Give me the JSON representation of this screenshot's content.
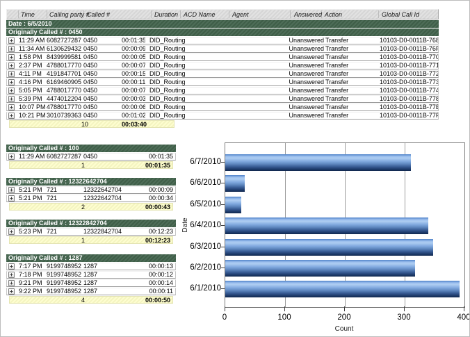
{
  "report": {
    "columns": [
      "Time",
      "Calling party #",
      "Called #",
      "Duration",
      "ACD Name",
      "Agent",
      "Answered",
      "Action",
      "Global Call Id"
    ],
    "date_header": "Date : 6/5/2010",
    "groups": [
      {
        "header": "Originally Called # : 0450",
        "rows": [
          {
            "time": "11:29 AM",
            "calling": "6082727287",
            "called": "0450",
            "duration": "00:01:35",
            "acd": "DID_Routing",
            "agent": "",
            "answered": "Unanswered",
            "action": "Transfer",
            "global_id": "10103-D0-0011B-768"
          },
          {
            "time": "11:34 AM",
            "calling": "6130629432",
            "called": "0450",
            "duration": "00:00:09",
            "acd": "DID_Routing",
            "agent": "",
            "answered": "Unanswered",
            "action": "Transfer",
            "global_id": "10103-D0-0011B-76F"
          },
          {
            "time": "1:58 PM",
            "calling": "8439999581",
            "called": "0450",
            "duration": "00:00:05",
            "acd": "DID_Routing",
            "agent": "",
            "answered": "Unanswered",
            "action": "Transfer",
            "global_id": "10103-D0-0011B-770"
          },
          {
            "time": "2:37 PM",
            "calling": "4788017770",
            "called": "0450",
            "duration": "00:00:07",
            "acd": "DID_Routing",
            "agent": "",
            "answered": "Unanswered",
            "action": "Transfer",
            "global_id": "10103-D0-0011B-771"
          },
          {
            "time": "4:11 PM",
            "calling": "4191847701",
            "called": "0450",
            "duration": "00:00:15",
            "acd": "DID_Routing",
            "agent": "",
            "answered": "Unanswered",
            "action": "Transfer",
            "global_id": "10103-D0-0011B-772"
          },
          {
            "time": "4:16 PM",
            "calling": "6169460905",
            "called": "0450",
            "duration": "00:00:11",
            "acd": "DID_Routing",
            "agent": "",
            "answered": "Unanswered",
            "action": "Transfer",
            "global_id": "10103-D0-0011B-773"
          },
          {
            "time": "5:05 PM",
            "calling": "4788017770",
            "called": "0450",
            "duration": "00:00:07",
            "acd": "DID_Routing",
            "agent": "",
            "answered": "Unanswered",
            "action": "Transfer",
            "global_id": "10103-D0-0011B-774"
          },
          {
            "time": "5:39 PM",
            "calling": "4474012204",
            "called": "0450",
            "duration": "00:00:03",
            "acd": "DID_Routing",
            "agent": "",
            "answered": "Unanswered",
            "action": "Transfer",
            "global_id": "10103-D0-0011B-778"
          },
          {
            "time": "10:07 PM",
            "calling": "4788017770",
            "called": "0450",
            "duration": "00:00:06",
            "acd": "DID_Routing",
            "agent": "",
            "answered": "Unanswered",
            "action": "Transfer",
            "global_id": "10103-D0-0011B-77E"
          },
          {
            "time": "10:21 PM",
            "calling": "3010739363",
            "called": "0450",
            "duration": "00:01:02",
            "acd": "DID_Routing",
            "agent": "",
            "answered": "Unanswered",
            "action": "Transfer",
            "global_id": "10103-D0-0011B-77F"
          }
        ],
        "summary": {
          "count": "10",
          "total": "00:03:40"
        }
      },
      {
        "header": "Originally Called # : 100",
        "rows": [
          {
            "time": "11:29 AM",
            "calling": "6082727287",
            "called": "0450",
            "duration": "00:01:35"
          }
        ],
        "summary": {
          "count": "1",
          "total": "00:01:35"
        }
      },
      {
        "header": "Originally Called # : 12322642704",
        "rows": [
          {
            "time": "5:21 PM",
            "calling": "721",
            "called": "12322642704",
            "duration": "00:00:09"
          },
          {
            "time": "5:21 PM",
            "calling": "721",
            "called": "12322642704",
            "duration": "00:00:34"
          }
        ],
        "summary": {
          "count": "2",
          "total": "00:00:43"
        }
      },
      {
        "header": "Originally Called # : 12322842704",
        "rows": [
          {
            "time": "5:23 PM",
            "calling": "721",
            "called": "12322842704",
            "duration": "00:12:23"
          }
        ],
        "summary": {
          "count": "1",
          "total": "00:12:23"
        }
      },
      {
        "header": "Originally Called # : 1287",
        "rows": [
          {
            "time": "7:17 PM",
            "calling": "9199748952",
            "called": "1287",
            "duration": "00:00:13"
          },
          {
            "time": "7:18 PM",
            "calling": "9199748952",
            "called": "1287",
            "duration": "00:00:12"
          },
          {
            "time": "9:21 PM",
            "calling": "9199748952",
            "called": "1287",
            "duration": "00:00:14"
          },
          {
            "time": "9:22 PM",
            "calling": "9199748952",
            "called": "1287",
            "duration": "00:00:11"
          }
        ],
        "summary": {
          "count": "4",
          "total": "00:00:50"
        }
      }
    ]
  },
  "icons": {
    "expand": "+"
  },
  "colors": {
    "group_band_green": "#44624e",
    "summary_yellow": "#fafac8",
    "header_gray": "#d9d9d9",
    "bar_blue_light": "#a9c8f0",
    "bar_blue_dark": "#1c3764"
  },
  "chart_data": {
    "type": "bar",
    "orientation": "horizontal",
    "categories": [
      "6/7/2010",
      "6/6/2010",
      "6/5/2010",
      "6/4/2010",
      "6/3/2010",
      "6/2/2010",
      "6/1/2010"
    ],
    "values": [
      310,
      33,
      27,
      340,
      348,
      317,
      392
    ],
    "title": "",
    "xlabel": "Count",
    "ylabel": "Date",
    "xlim": [
      0,
      400
    ],
    "xticks": [
      0,
      100,
      200,
      300,
      400
    ],
    "grid": true,
    "legend": "none"
  }
}
